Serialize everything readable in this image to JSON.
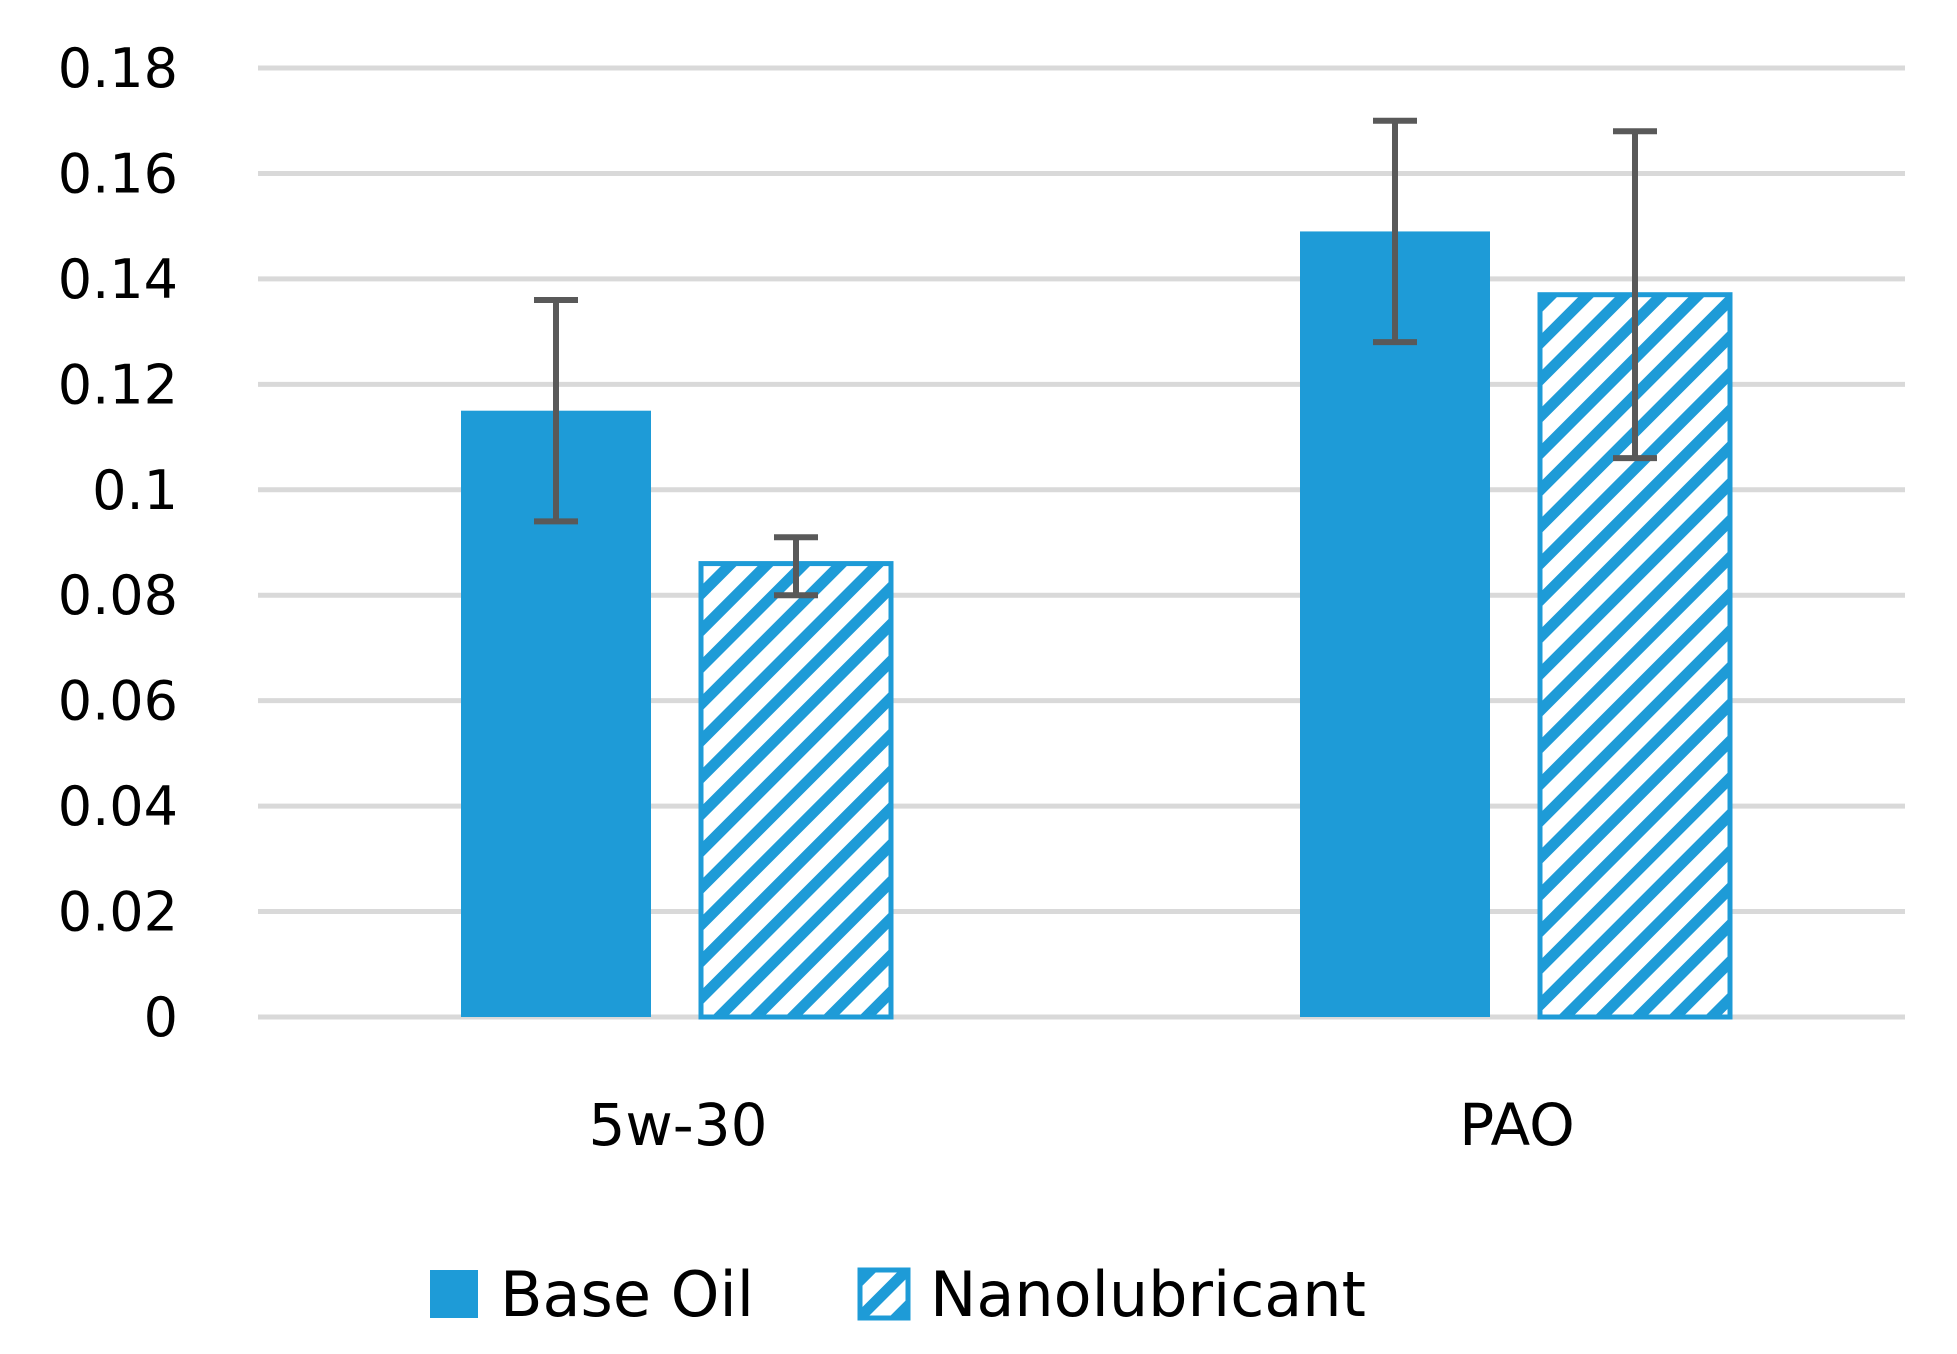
{
  "chart_data": {
    "type": "bar",
    "title": "",
    "xlabel": "",
    "ylabel": "",
    "categories": [
      "5w-30",
      "PAO"
    ],
    "series": [
      {
        "name": "Base Oil",
        "values": [
          0.115,
          0.149
        ],
        "error_low": [
          0.094,
          0.128
        ],
        "error_high": [
          0.136,
          0.17
        ],
        "color": "#1E9BD7",
        "pattern": "solid"
      },
      {
        "name": "Nanolubricant",
        "values": [
          0.086,
          0.137
        ],
        "error_low": [
          0.08,
          0.106
        ],
        "error_high": [
          0.091,
          0.168
        ],
        "color": "#1E9BD7",
        "pattern": "diagonal-hatch"
      }
    ],
    "ylim": [
      0,
      0.18
    ],
    "yticks": [
      "0",
      "0.02",
      "0.04",
      "0.06",
      "0.08",
      "0.1",
      "0.12",
      "0.14",
      "0.16",
      "0.18"
    ],
    "grid": true,
    "gridline_color": "#D9D9D9",
    "errorbar_color": "#595959",
    "legend_position": "bottom"
  }
}
